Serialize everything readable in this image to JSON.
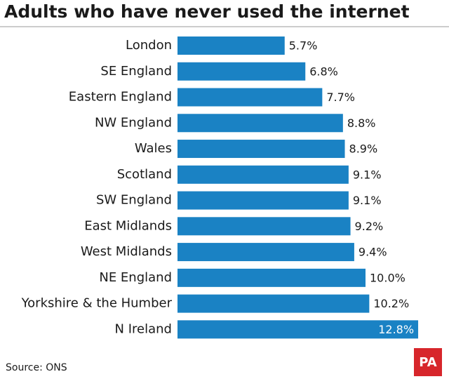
{
  "chart_data": {
    "type": "bar",
    "orientation": "horizontal",
    "title": "Adults who have never used the internet",
    "categories": [
      "London",
      "SE England",
      "Eastern England",
      "NW England",
      "Wales",
      "Scotland",
      "SW England",
      "East Midlands",
      "West Midlands",
      "NE England",
      "Yorkshire & the Humber",
      "N Ireland"
    ],
    "values": [
      5.7,
      6.8,
      7.7,
      8.8,
      8.9,
      9.1,
      9.1,
      9.2,
      9.4,
      10.0,
      10.2,
      12.8
    ],
    "value_labels": [
      "5.7%",
      "6.8%",
      "7.7%",
      "8.8%",
      "8.9%",
      "9.1%",
      "9.1%",
      "9.2%",
      "9.4%",
      "10.0%",
      "10.2%",
      "12.8%"
    ],
    "color": "#1a82c4",
    "source": "Source: ONS",
    "logo": "PA"
  }
}
